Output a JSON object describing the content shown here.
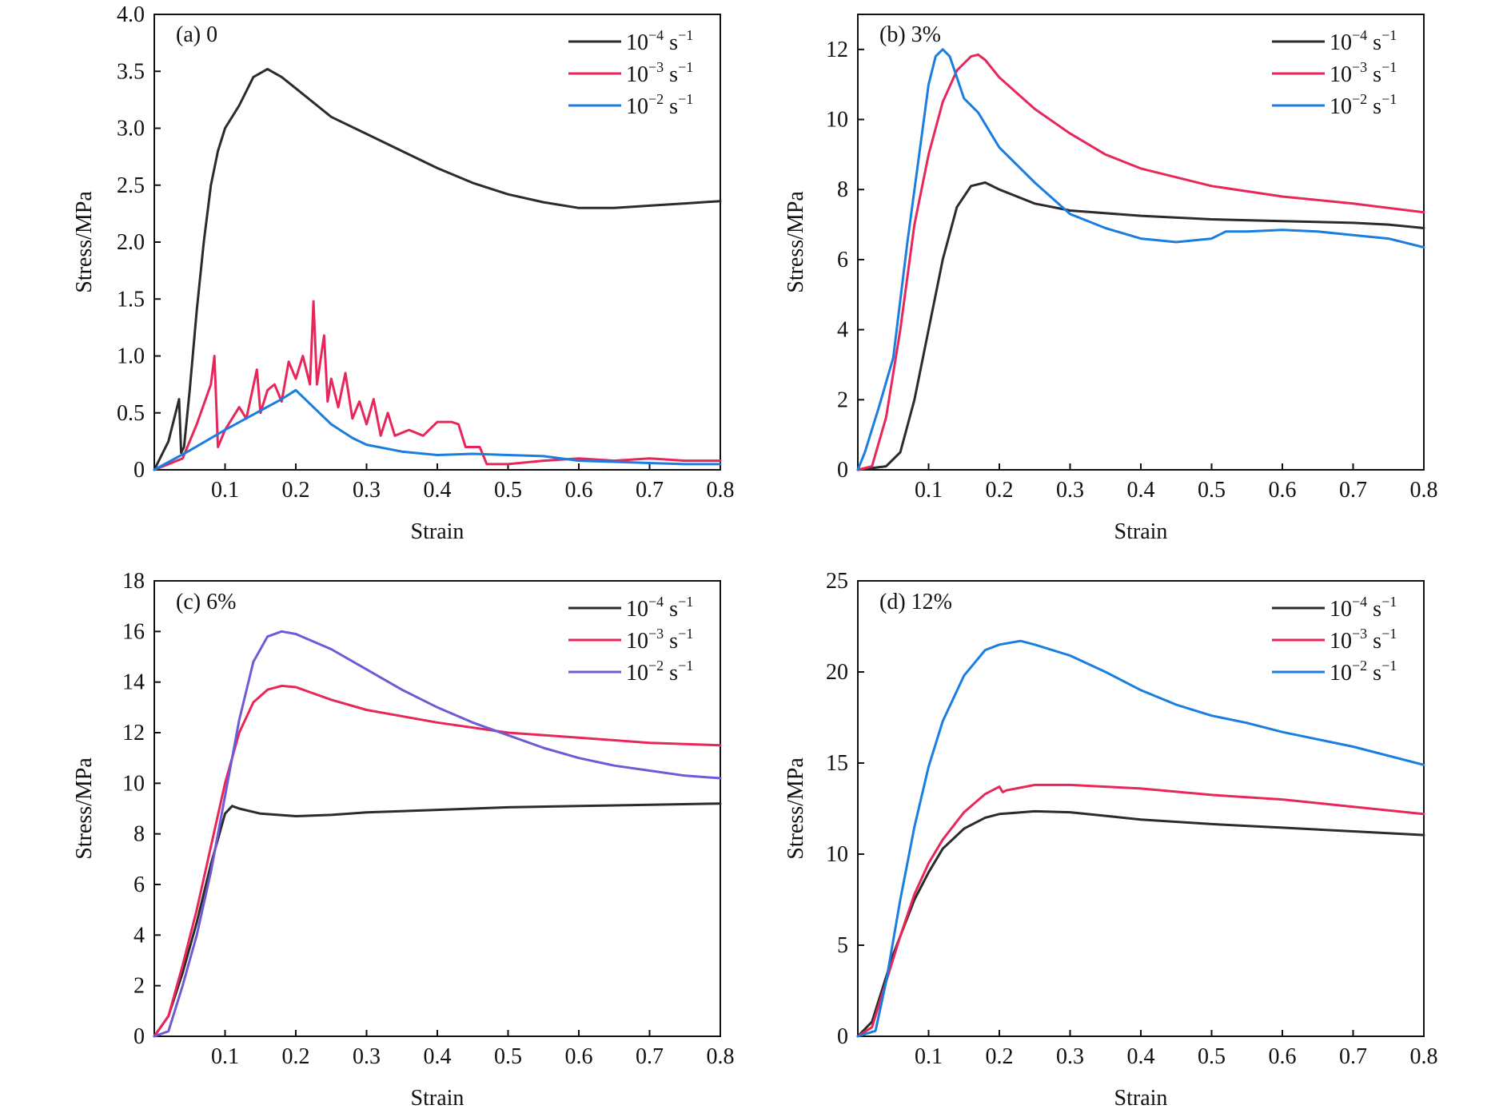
{
  "colors": {
    "black": "#2b2b2b",
    "red": "#e8265a",
    "blue": "#1a7de0",
    "purple": "#6f5ad6"
  },
  "legend_labels": {
    "r4": {
      "base": "10",
      "exp": "−4",
      "unit": " s",
      "unit_exp": "−1"
    },
    "r3": {
      "base": "10",
      "exp": "−3",
      "unit": " s",
      "unit_exp": "−1"
    },
    "r2": {
      "base": "10",
      "exp": "−2",
      "unit": " s",
      "unit_exp": "−1"
    }
  },
  "chart_data": [
    {
      "type": "line",
      "title": "(a) 0",
      "xlabel": "Strain",
      "ylabel": "Stress/MPa",
      "xlim": [
        0,
        0.8
      ],
      "ylim": [
        0,
        4.0
      ],
      "xticks": [
        "0.1",
        "0.2",
        "0.3",
        "0.4",
        "0.5",
        "0.6",
        "0.7",
        "0.8"
      ],
      "xtick_values": [
        0.1,
        0.2,
        0.3,
        0.4,
        0.5,
        0.6,
        0.7,
        0.8
      ],
      "yticks": [
        "0",
        "0.5",
        "1.0",
        "1.5",
        "2.0",
        "2.5",
        "3.0",
        "3.5",
        "4.0"
      ],
      "ytick_values": [
        0,
        0.5,
        1.0,
        1.5,
        2.0,
        2.5,
        3.0,
        3.5,
        4.0
      ],
      "legend_position": "top-right",
      "series": [
        {
          "name": "r4",
          "color": "black",
          "x": [
            0,
            0.02,
            0.035,
            0.038,
            0.042,
            0.05,
            0.06,
            0.07,
            0.08,
            0.09,
            0.1,
            0.12,
            0.14,
            0.16,
            0.18,
            0.2,
            0.25,
            0.3,
            0.35,
            0.4,
            0.45,
            0.5,
            0.55,
            0.6,
            0.65,
            0.7,
            0.75,
            0.8
          ],
          "y": [
            0,
            0.25,
            0.62,
            0.15,
            0.2,
            0.7,
            1.4,
            2.0,
            2.5,
            2.8,
            3.0,
            3.2,
            3.45,
            3.52,
            3.45,
            3.35,
            3.1,
            2.95,
            2.8,
            2.65,
            2.52,
            2.42,
            2.35,
            2.3,
            2.3,
            2.32,
            2.34,
            2.36
          ]
        },
        {
          "name": "r3",
          "color": "red",
          "x": [
            0,
            0.04,
            0.06,
            0.08,
            0.085,
            0.09,
            0.1,
            0.12,
            0.13,
            0.145,
            0.15,
            0.16,
            0.17,
            0.18,
            0.19,
            0.2,
            0.21,
            0.22,
            0.225,
            0.23,
            0.24,
            0.245,
            0.25,
            0.26,
            0.27,
            0.28,
            0.29,
            0.3,
            0.31,
            0.32,
            0.33,
            0.34,
            0.36,
            0.38,
            0.4,
            0.42,
            0.43,
            0.44,
            0.45,
            0.46,
            0.47,
            0.5,
            0.55,
            0.6,
            0.65,
            0.7,
            0.75,
            0.8
          ],
          "y": [
            0,
            0.1,
            0.4,
            0.75,
            1.0,
            0.2,
            0.35,
            0.55,
            0.45,
            0.88,
            0.5,
            0.7,
            0.75,
            0.6,
            0.95,
            0.8,
            1.0,
            0.75,
            1.48,
            0.75,
            1.18,
            0.6,
            0.8,
            0.55,
            0.85,
            0.45,
            0.6,
            0.4,
            0.62,
            0.3,
            0.5,
            0.3,
            0.35,
            0.3,
            0.42,
            0.42,
            0.4,
            0.2,
            0.2,
            0.2,
            0.05,
            0.05,
            0.08,
            0.1,
            0.08,
            0.1,
            0.08,
            0.08
          ]
        },
        {
          "name": "r2",
          "color": "blue",
          "x": [
            0,
            0.05,
            0.1,
            0.15,
            0.18,
            0.2,
            0.22,
            0.25,
            0.28,
            0.3,
            0.35,
            0.4,
            0.45,
            0.5,
            0.55,
            0.6,
            0.65,
            0.7,
            0.75,
            0.8
          ],
          "y": [
            0,
            0.17,
            0.35,
            0.52,
            0.62,
            0.7,
            0.58,
            0.4,
            0.28,
            0.22,
            0.16,
            0.13,
            0.14,
            0.13,
            0.12,
            0.08,
            0.07,
            0.06,
            0.05,
            0.05
          ]
        }
      ]
    },
    {
      "type": "line",
      "title": "(b) 3%",
      "xlabel": "Strain",
      "ylabel": "Stress/MPa",
      "xlim": [
        0,
        0.8
      ],
      "ylim": [
        0,
        13
      ],
      "xticks": [
        "0.1",
        "0.2",
        "0.3",
        "0.4",
        "0.5",
        "0.6",
        "0.7",
        "0.8"
      ],
      "xtick_values": [
        0.1,
        0.2,
        0.3,
        0.4,
        0.5,
        0.6,
        0.7,
        0.8
      ],
      "yticks": [
        "0",
        "2",
        "4",
        "6",
        "8",
        "10",
        "12"
      ],
      "ytick_values": [
        0,
        2,
        4,
        6,
        8,
        10,
        12
      ],
      "legend_position": "top-right",
      "series": [
        {
          "name": "r4",
          "color": "black",
          "x": [
            0,
            0.04,
            0.06,
            0.08,
            0.1,
            0.12,
            0.14,
            0.16,
            0.18,
            0.2,
            0.25,
            0.3,
            0.4,
            0.5,
            0.6,
            0.7,
            0.75,
            0.8
          ],
          "y": [
            0,
            0.1,
            0.5,
            2.0,
            4.0,
            6.0,
            7.5,
            8.1,
            8.2,
            8.0,
            7.6,
            7.4,
            7.25,
            7.15,
            7.1,
            7.05,
            7.0,
            6.9
          ]
        },
        {
          "name": "r3",
          "color": "red",
          "x": [
            0,
            0.02,
            0.04,
            0.06,
            0.08,
            0.1,
            0.12,
            0.14,
            0.16,
            0.17,
            0.18,
            0.2,
            0.25,
            0.3,
            0.35,
            0.4,
            0.5,
            0.6,
            0.7,
            0.8
          ],
          "y": [
            0,
            0.1,
            1.5,
            4.0,
            7.0,
            9.0,
            10.5,
            11.4,
            11.8,
            11.85,
            11.7,
            11.2,
            10.3,
            9.6,
            9.0,
            8.6,
            8.1,
            7.8,
            7.6,
            7.35
          ]
        },
        {
          "name": "r2",
          "color": "blue",
          "x": [
            0,
            0.01,
            0.03,
            0.05,
            0.07,
            0.09,
            0.1,
            0.11,
            0.12,
            0.13,
            0.14,
            0.15,
            0.17,
            0.2,
            0.25,
            0.3,
            0.35,
            0.4,
            0.45,
            0.5,
            0.52,
            0.55,
            0.6,
            0.65,
            0.7,
            0.75,
            0.8
          ],
          "y": [
            0,
            0.5,
            1.8,
            3.2,
            6.5,
            9.5,
            11.0,
            11.8,
            12.0,
            11.8,
            11.2,
            10.6,
            10.2,
            9.2,
            8.2,
            7.3,
            6.9,
            6.6,
            6.5,
            6.6,
            6.8,
            6.8,
            6.85,
            6.8,
            6.7,
            6.6,
            6.35
          ]
        }
      ]
    },
    {
      "type": "line",
      "title": "(c) 6%",
      "xlabel": "Strain",
      "ylabel": "Stress/MPa",
      "xlim": [
        0,
        0.8
      ],
      "ylim": [
        0,
        18
      ],
      "xticks": [
        "0.1",
        "0.2",
        "0.3",
        "0.4",
        "0.5",
        "0.6",
        "0.7",
        "0.8"
      ],
      "xtick_values": [
        0.1,
        0.2,
        0.3,
        0.4,
        0.5,
        0.6,
        0.7,
        0.8
      ],
      "yticks": [
        "0",
        "2",
        "4",
        "6",
        "8",
        "10",
        "12",
        "14",
        "16",
        "18"
      ],
      "ytick_values": [
        0,
        2,
        4,
        6,
        8,
        10,
        12,
        14,
        16,
        18
      ],
      "legend_position": "top-right",
      "series": [
        {
          "name": "r4",
          "color": "black",
          "x": [
            0,
            0.02,
            0.04,
            0.06,
            0.08,
            0.1,
            0.11,
            0.12,
            0.15,
            0.2,
            0.25,
            0.3,
            0.4,
            0.5,
            0.6,
            0.7,
            0.8
          ],
          "y": [
            0,
            0.8,
            2.5,
            4.5,
            6.8,
            8.8,
            9.1,
            9.0,
            8.8,
            8.7,
            8.75,
            8.85,
            8.95,
            9.05,
            9.1,
            9.15,
            9.2
          ]
        },
        {
          "name": "r3",
          "color": "red",
          "x": [
            0,
            0.02,
            0.04,
            0.06,
            0.08,
            0.1,
            0.12,
            0.14,
            0.16,
            0.18,
            0.2,
            0.25,
            0.3,
            0.4,
            0.5,
            0.6,
            0.7,
            0.8
          ],
          "y": [
            0,
            0.8,
            2.8,
            5.0,
            7.5,
            10.0,
            12.0,
            13.2,
            13.7,
            13.85,
            13.8,
            13.3,
            12.9,
            12.4,
            12.0,
            11.8,
            11.6,
            11.5
          ]
        },
        {
          "name": "r2",
          "color": "purple",
          "x": [
            0,
            0.02,
            0.04,
            0.06,
            0.08,
            0.1,
            0.12,
            0.14,
            0.16,
            0.18,
            0.2,
            0.25,
            0.3,
            0.35,
            0.4,
            0.45,
            0.5,
            0.55,
            0.6,
            0.65,
            0.7,
            0.75,
            0.8
          ],
          "y": [
            0,
            0.2,
            2.0,
            4.0,
            6.5,
            9.5,
            12.5,
            14.8,
            15.8,
            16.0,
            15.9,
            15.3,
            14.5,
            13.7,
            13.0,
            12.4,
            11.9,
            11.4,
            11.0,
            10.7,
            10.5,
            10.3,
            10.2
          ]
        }
      ]
    },
    {
      "type": "line",
      "title": "(d) 12%",
      "xlabel": "Strain",
      "ylabel": "Stress/MPa",
      "xlim": [
        0,
        0.8
      ],
      "ylim": [
        0,
        25
      ],
      "xticks": [
        "0.1",
        "0.2",
        "0.3",
        "0.4",
        "0.5",
        "0.6",
        "0.7",
        "0.8"
      ],
      "xtick_values": [
        0.1,
        0.2,
        0.3,
        0.4,
        0.5,
        0.6,
        0.7,
        0.8
      ],
      "yticks": [
        "0",
        "5",
        "10",
        "15",
        "20",
        "25"
      ],
      "ytick_values": [
        0,
        5,
        10,
        15,
        20,
        25
      ],
      "legend_position": "top-right",
      "series": [
        {
          "name": "r4",
          "color": "black",
          "x": [
            0,
            0.02,
            0.05,
            0.08,
            0.1,
            0.12,
            0.15,
            0.18,
            0.2,
            0.25,
            0.3,
            0.35,
            0.4,
            0.5,
            0.6,
            0.7,
            0.8
          ],
          "y": [
            0,
            0.8,
            4.5,
            7.5,
            9.0,
            10.3,
            11.4,
            12.0,
            12.2,
            12.35,
            12.3,
            12.1,
            11.9,
            11.65,
            11.45,
            11.25,
            11.05
          ]
        },
        {
          "name": "r3",
          "color": "red",
          "x": [
            0,
            0.02,
            0.04,
            0.06,
            0.08,
            0.1,
            0.12,
            0.15,
            0.18,
            0.2,
            0.205,
            0.21,
            0.25,
            0.3,
            0.35,
            0.4,
            0.5,
            0.6,
            0.7,
            0.8
          ],
          "y": [
            0,
            0.5,
            3.0,
            5.5,
            7.8,
            9.5,
            10.8,
            12.3,
            13.3,
            13.7,
            13.4,
            13.5,
            13.8,
            13.8,
            13.7,
            13.6,
            13.25,
            13.0,
            12.6,
            12.2
          ]
        },
        {
          "name": "r2",
          "color": "blue",
          "x": [
            0,
            0.025,
            0.04,
            0.06,
            0.08,
            0.1,
            0.12,
            0.15,
            0.18,
            0.2,
            0.23,
            0.25,
            0.3,
            0.35,
            0.4,
            0.45,
            0.5,
            0.55,
            0.6,
            0.7,
            0.8
          ],
          "y": [
            0,
            0.3,
            3.0,
            7.5,
            11.5,
            14.8,
            17.3,
            19.8,
            21.2,
            21.5,
            21.7,
            21.5,
            20.9,
            20.0,
            19.0,
            18.2,
            17.6,
            17.2,
            16.7,
            15.9,
            14.9
          ]
        }
      ]
    }
  ]
}
